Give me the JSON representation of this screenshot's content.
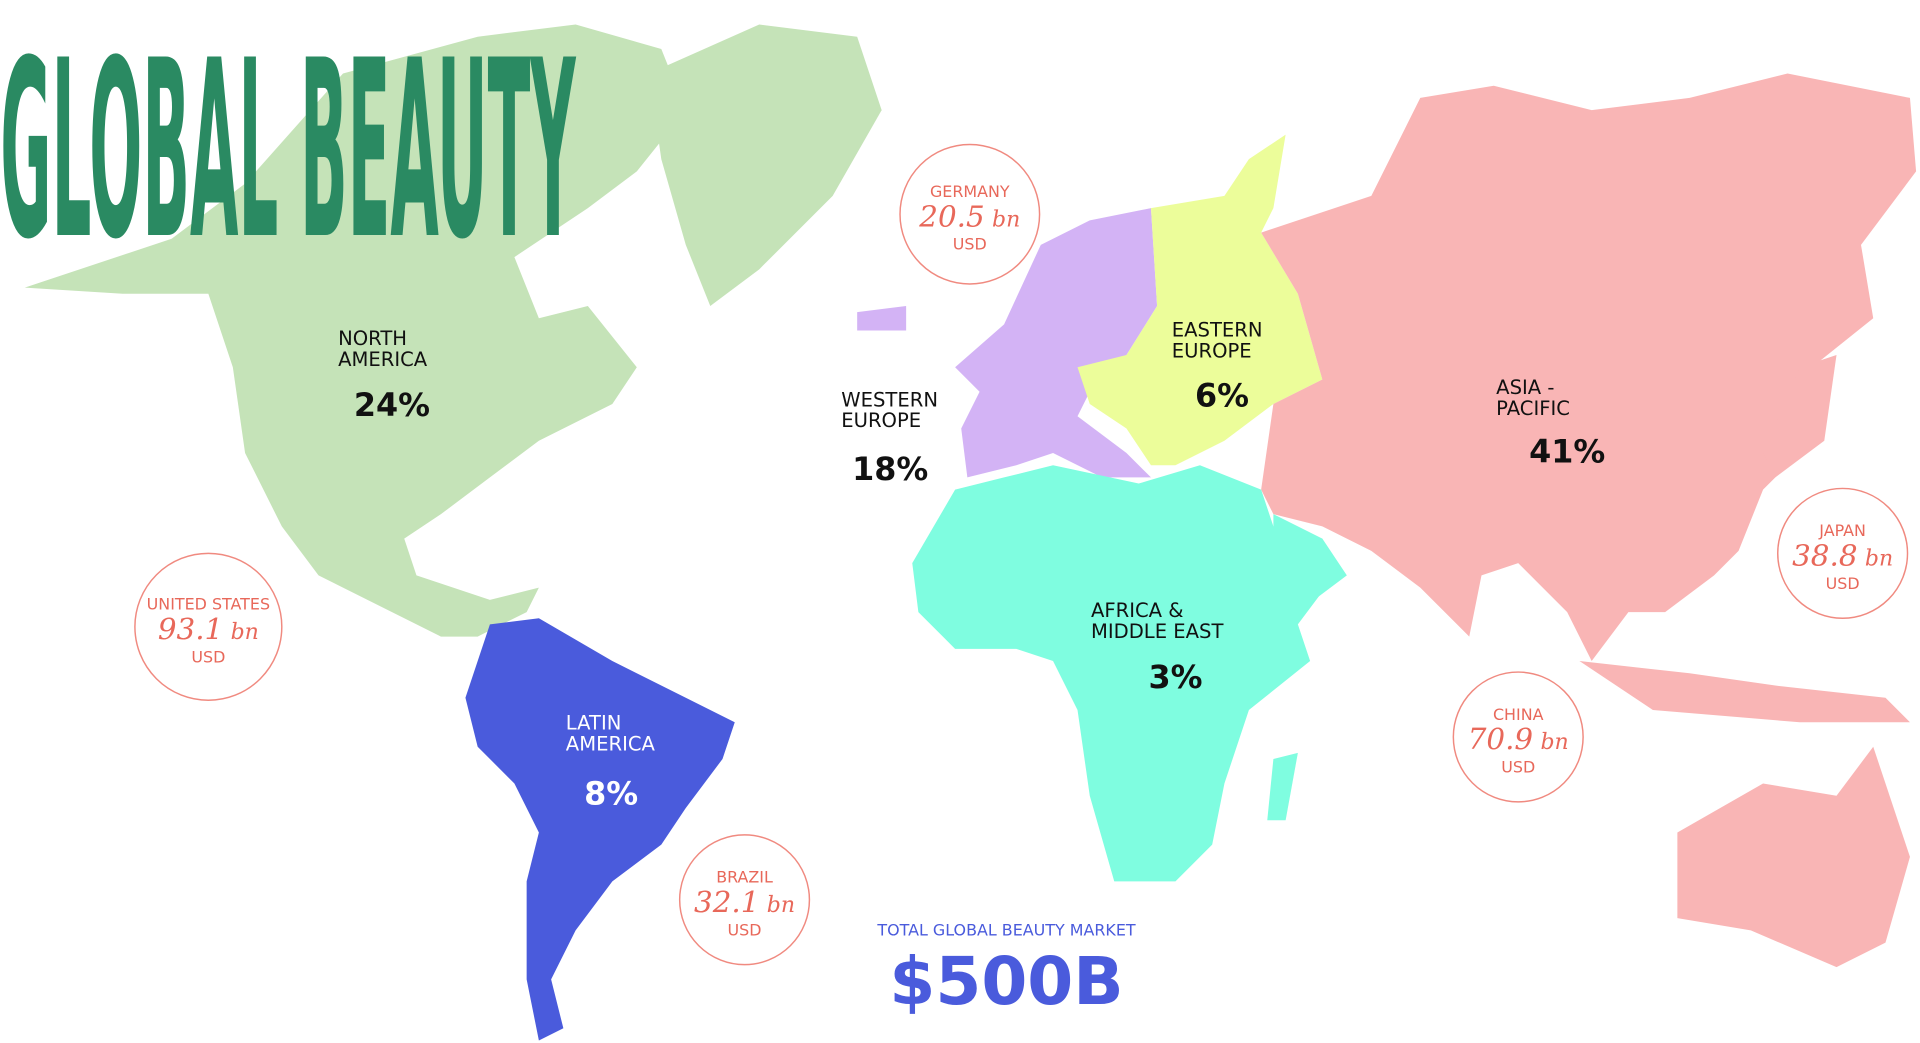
{
  "title": "GLOBAL BEAUTY",
  "regions": [
    {
      "name": [
        "NORTH",
        "AMERICA"
      ],
      "share": "24%"
    },
    {
      "name": [
        "WESTERN",
        "EUROPE"
      ],
      "share": "18%"
    },
    {
      "name": [
        "EASTERN",
        "EUROPE"
      ],
      "share": "6%"
    },
    {
      "name": [
        "ASIA -",
        "PACIFIC"
      ],
      "share": "41%"
    },
    {
      "name": [
        "AFRICA &",
        "MIDDLE EAST"
      ],
      "share": "3%"
    },
    {
      "name": [
        "LATIN",
        "AMERICA"
      ],
      "share": "8%"
    }
  ],
  "markets": [
    {
      "country": "GERMANY",
      "value": "20.5",
      "unit": "bn",
      "currency": "USD"
    },
    {
      "country": "UNITED STATES",
      "value": "93.1",
      "unit": "bn",
      "currency": "USD"
    },
    {
      "country": "BRAZIL",
      "value": "32.1",
      "unit": "bn",
      "currency": "USD"
    },
    {
      "country": "CHINA",
      "value": "70.9",
      "unit": "bn",
      "currency": "USD"
    },
    {
      "country": "JAPAN",
      "value": "38.8",
      "unit": "bn",
      "currency": "USD"
    }
  ],
  "total": {
    "label": "TOTAL GLOBAL BEAUTY MARKET",
    "value": "$500B"
  }
}
